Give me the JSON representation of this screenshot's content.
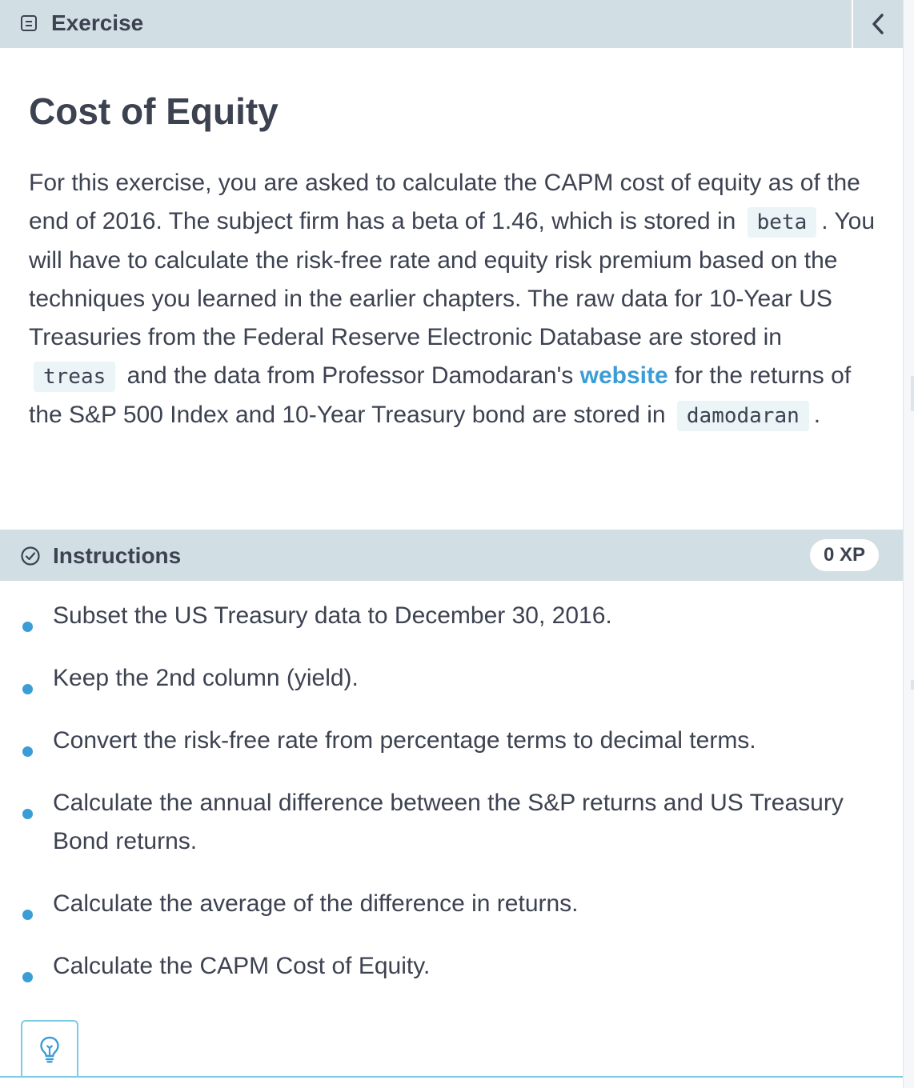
{
  "header": {
    "title": "Exercise",
    "icon": "exercise-icon",
    "collapse_icon": "chevron-left-icon"
  },
  "assignment": {
    "title": "Cost of Equity",
    "p1": "For this exercise, you are asked to calculate the CAPM cost of equity as of the end of 2016. The subject firm has a beta of 1.46, which is stored in",
    "code_beta": "beta",
    "p2": ". You will have to calculate the risk-free rate and equity risk premium based on the techniques you learned in the earlier chapters. The raw data for 10-Year US Treasuries from the Federal Reserve Electronic Database are stored in",
    "code_treas": "treas",
    "p3": "and the data from Professor Damodaran's",
    "link": "website",
    "p4": "for the returns of the S&P 500 Index and 10-Year Treasury bond are stored in",
    "code_damodaran": "damodaran",
    "p5": "."
  },
  "instructions": {
    "title": "Instructions",
    "xp": "0 XP",
    "items": [
      "Subset the US Treasury data to December 30, 2016.",
      "Keep the 2nd column (yield).",
      "Convert the risk-free rate from percentage terms to decimal terms.",
      "Calculate the annual difference between the S&P returns and US Treasury Bond returns.",
      "Calculate the average of the difference in returns.",
      "Calculate the CAPM Cost of Equity."
    ]
  },
  "hint": {
    "icon": "lightbulb-icon"
  },
  "colors": {
    "header_bg": "#d1dee4",
    "text": "#3d4251",
    "accent": "#3a9dd6",
    "code_bg": "#ebf4f7",
    "hint_border": "#7ccbe3"
  }
}
